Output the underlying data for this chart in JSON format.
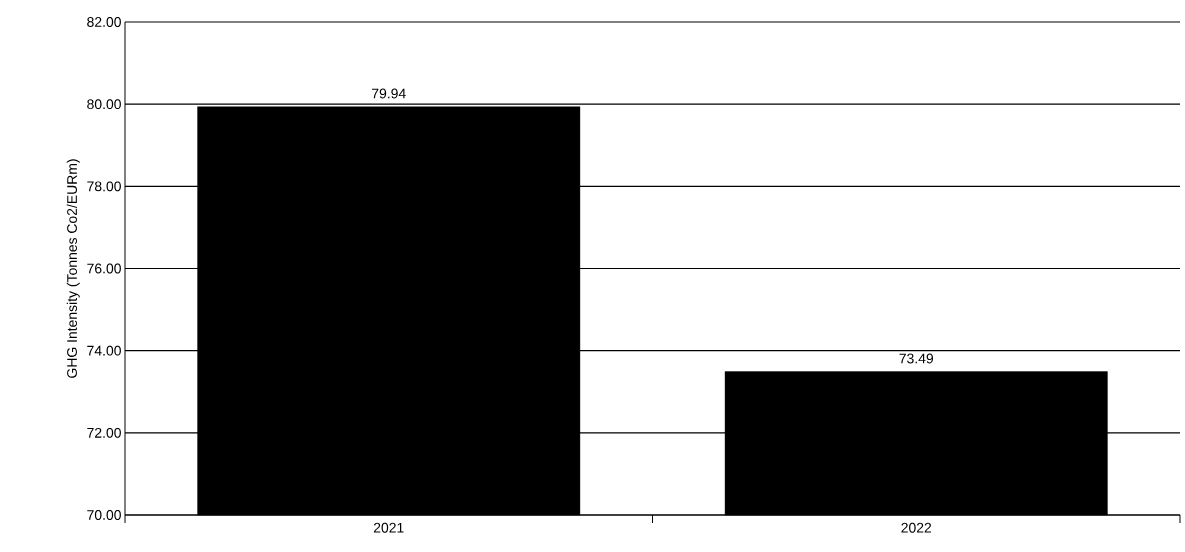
{
  "chart_data": {
    "type": "bar",
    "ylabel": "GHG Intensity  (Tonnes Co2/EURm)",
    "categories": [
      "2021",
      "2022"
    ],
    "values": [
      79.94,
      73.49
    ],
    "value_labels": [
      "79.94",
      "73.49"
    ],
    "color": "#000000",
    "ylim": [
      70,
      82
    ],
    "yticks": [
      {
        "value": 70,
        "label": "70.00"
      },
      {
        "value": 72,
        "label": "72.00"
      },
      {
        "value": 74,
        "label": "74.00"
      },
      {
        "value": 76,
        "label": "76.00"
      },
      {
        "value": 78,
        "label": "78.00"
      },
      {
        "value": 80,
        "label": "80.00"
      },
      {
        "value": 82,
        "label": "82.00"
      }
    ],
    "grid": "y"
  }
}
